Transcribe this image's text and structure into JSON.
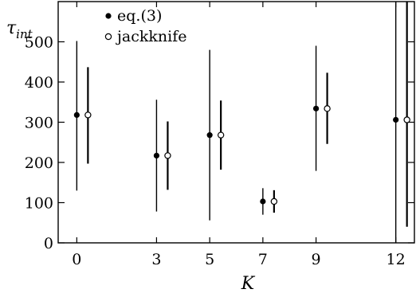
{
  "chart_data": {
    "type": "scatter",
    "x_ticks": [
      "0",
      "3",
      "5",
      "7",
      "9",
      "12"
    ],
    "y_ticks": [
      "0",
      "100",
      "200",
      "300",
      "400",
      "500"
    ],
    "xlabel": "K",
    "ylabel_main": "τ",
    "ylabel_sub": "int",
    "ylim": [
      0,
      600
    ],
    "xlim": [
      -0.7,
      12.7
    ],
    "grid": false,
    "legend_position": "top-left",
    "series": [
      {
        "name": "eq.(3)",
        "marker": "filled-circle",
        "points": [
          {
            "x": 0,
            "y": 318,
            "y_low": 130,
            "y_high": 502
          },
          {
            "x": 3,
            "y": 217,
            "y_low": 78,
            "y_high": 356
          },
          {
            "x": 5,
            "y": 268,
            "y_low": 56,
            "y_high": 480
          },
          {
            "x": 7,
            "y": 103,
            "y_low": 70,
            "y_high": 136
          },
          {
            "x": 9,
            "y": 334,
            "y_low": 179,
            "y_high": 490
          },
          {
            "x": 12,
            "y": 306,
            "y_low": 0,
            "y_high": 600
          }
        ]
      },
      {
        "name": "jackknife",
        "marker": "open-circle",
        "points": [
          {
            "x": 0,
            "y": 318,
            "y_low": 197,
            "y_high": 437
          },
          {
            "x": 3,
            "y": 217,
            "y_low": 132,
            "y_high": 302
          },
          {
            "x": 5,
            "y": 268,
            "y_low": 182,
            "y_high": 354
          },
          {
            "x": 7,
            "y": 103,
            "y_low": 75,
            "y_high": 131
          },
          {
            "x": 9,
            "y": 334,
            "y_low": 246,
            "y_high": 423
          },
          {
            "x": 12,
            "y": 306,
            "y_low": 40,
            "y_high": 600
          }
        ]
      }
    ]
  }
}
